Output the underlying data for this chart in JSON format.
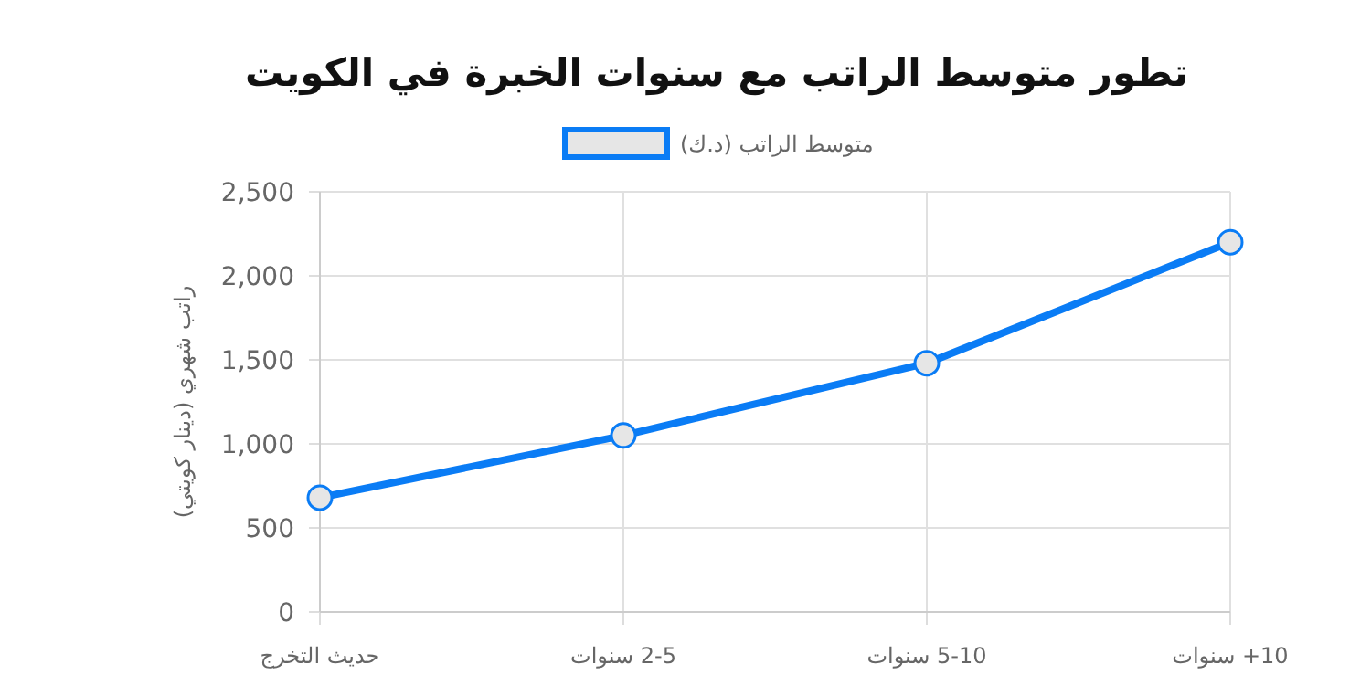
{
  "chart_data": {
    "type": "line",
    "title": "تطور متوسط الراتب مع سنوات الخبرة في الكويت",
    "ylabel": "راتب شهري (دينار كويتي)",
    "categories": [
      "حديث التخرج",
      "2-5 سنوات",
      "5-10 سنوات",
      "10+ سنوات"
    ],
    "series": [
      {
        "name": "متوسط الراتب (د.ك)",
        "color": "#0a7cf5",
        "values": [
          680,
          1050,
          1480,
          2200
        ]
      }
    ],
    "ylim": [
      0,
      2500
    ],
    "yticks": [
      {
        "value": 0,
        "label": "0"
      },
      {
        "value": 500,
        "label": "500"
      },
      {
        "value": 1000,
        "label": "1,000"
      },
      {
        "value": 1500,
        "label": "1,500"
      },
      {
        "value": 2000,
        "label": "2,000"
      },
      {
        "value": 2500,
        "label": "2,500"
      }
    ],
    "grid": true,
    "legend": "top",
    "marker": "circle",
    "line_style": "solid"
  }
}
